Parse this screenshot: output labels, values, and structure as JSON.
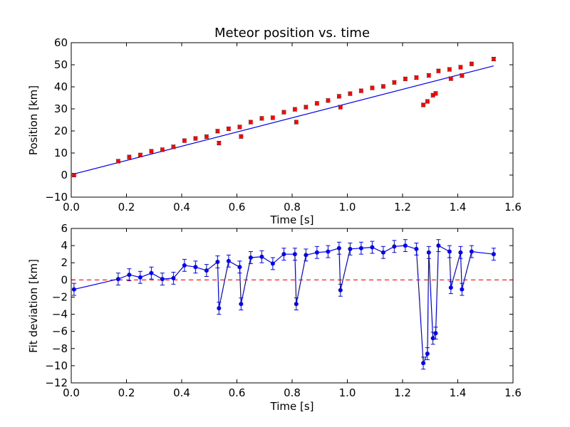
{
  "chart_data": [
    {
      "type": "scatter",
      "title": "Meteor position vs. time",
      "xlabel": "Time [s]",
      "ylabel": "Position [km]",
      "xlim": [
        0.0,
        1.6
      ],
      "ylim": [
        -10,
        60
      ],
      "xticks": [
        "0.0",
        "0.2",
        "0.4",
        "0.6",
        "0.8",
        "1.0",
        "1.2",
        "1.4",
        "1.6"
      ],
      "yticks": [
        "−10",
        "0",
        "10",
        "20",
        "30",
        "40",
        "50",
        "60"
      ],
      "grid": false,
      "colors": {
        "points": "#ff0000",
        "fit": "#0000ff"
      },
      "series": [
        {
          "kind": "points-with-errorbars",
          "x": [
            0.01,
            0.17,
            0.21,
            0.25,
            0.29,
            0.33,
            0.37,
            0.41,
            0.45,
            0.49,
            0.53,
            0.535,
            0.57,
            0.61,
            0.615,
            0.65,
            0.69,
            0.73,
            0.77,
            0.81,
            0.815,
            0.85,
            0.89,
            0.93,
            0.97,
            0.975,
            1.01,
            1.05,
            1.09,
            1.13,
            1.17,
            1.21,
            1.25,
            1.275,
            1.29,
            1.295,
            1.31,
            1.32,
            1.33,
            1.37,
            1.375,
            1.41,
            1.415,
            1.45,
            1.53
          ],
          "y": [
            0.0,
            6.3,
            8.2,
            9.1,
            10.8,
            11.5,
            12.8,
            15.6,
            16.6,
            17.4,
            19.9,
            14.5,
            21.0,
            21.8,
            17.5,
            24.0,
            25.7,
            26.0,
            28.5,
            29.8,
            24.0,
            30.8,
            32.5,
            33.8,
            35.7,
            30.8,
            36.9,
            38.2,
            39.5,
            40.2,
            42.0,
            43.6,
            44.2,
            31.8,
            33.4,
            45.2,
            36.2,
            37.0,
            47.2,
            47.9,
            43.7,
            48.9,
            45.1,
            50.4,
            52.6
          ],
          "yerr": 0.8
        },
        {
          "kind": "fit-line",
          "x": [
            0.01,
            1.53
          ],
          "y": [
            0.5,
            49.5
          ]
        }
      ]
    },
    {
      "type": "line",
      "xlabel": "Time [s]",
      "ylabel": "Fit deviation [km]",
      "xlim": [
        0.0,
        1.6
      ],
      "ylim": [
        -12,
        6
      ],
      "xticks": [
        "0.0",
        "0.2",
        "0.4",
        "0.6",
        "0.8",
        "1.0",
        "1.2",
        "1.4",
        "1.6"
      ],
      "yticks": [
        "−12",
        "−10",
        "−8",
        "−6",
        "−4",
        "−2",
        "0",
        "2",
        "4",
        "6"
      ],
      "grid": false,
      "zero_line": {
        "y": 0,
        "style": "dashed",
        "color": "#ff0000"
      },
      "colors": {
        "line": "#0000ff"
      },
      "series": [
        {
          "x": [
            0.01,
            0.17,
            0.21,
            0.25,
            0.29,
            0.33,
            0.37,
            0.41,
            0.45,
            0.49,
            0.53,
            0.535,
            0.57,
            0.61,
            0.615,
            0.65,
            0.69,
            0.73,
            0.77,
            0.81,
            0.815,
            0.85,
            0.89,
            0.93,
            0.97,
            0.975,
            1.01,
            1.05,
            1.09,
            1.13,
            1.17,
            1.21,
            1.25,
            1.275,
            1.29,
            1.295,
            1.31,
            1.32,
            1.33,
            1.37,
            1.375,
            1.41,
            1.415,
            1.45,
            1.53
          ],
          "y": [
            -1.1,
            0.1,
            0.6,
            0.3,
            0.8,
            0.1,
            0.2,
            1.7,
            1.5,
            1.1,
            2.1,
            -3.3,
            2.2,
            1.5,
            -2.8,
            2.6,
            2.7,
            1.9,
            3.0,
            3.0,
            -2.8,
            2.9,
            3.2,
            3.3,
            3.7,
            -1.2,
            3.6,
            3.7,
            3.8,
            3.2,
            3.9,
            4.0,
            3.6,
            -9.7,
            -8.6,
            3.2,
            -6.8,
            -6.2,
            4.0,
            3.3,
            -0.9,
            3.2,
            -1.1,
            3.3,
            3.0
          ],
          "yerr": 0.7
        }
      ]
    }
  ]
}
